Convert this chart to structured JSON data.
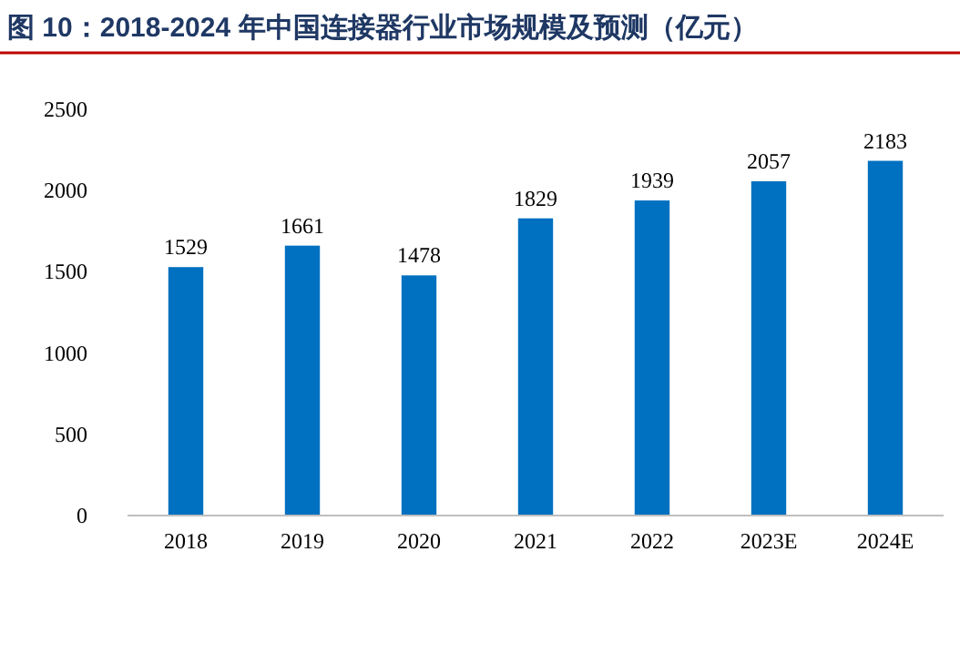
{
  "chart_data": {
    "type": "bar",
    "title": "图 10：2018-2024 年中国连接器行业市场规模及预测（亿元）",
    "categories": [
      "2018",
      "2019",
      "2020",
      "2021",
      "2022",
      "2023E",
      "2024E"
    ],
    "values": [
      1529,
      1661,
      1478,
      1829,
      1939,
      2057,
      2183
    ],
    "color": "#0070c0",
    "ylim": [
      0,
      2500
    ],
    "yticks": [
      0,
      500,
      1000,
      1500,
      2000,
      2500
    ],
    "grid": false,
    "data_labels": true
  }
}
